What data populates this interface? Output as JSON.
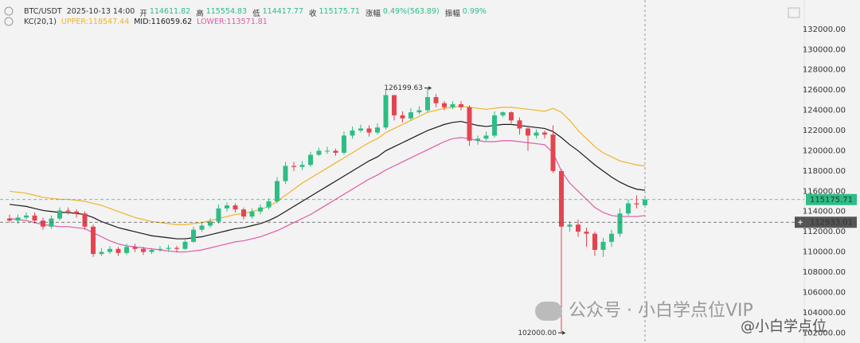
{
  "chart_data": {
    "type": "candlestick",
    "header": {
      "time": "2025-10-13 14:00",
      "fields": [
        {
          "label": "开",
          "value": "114611.82"
        },
        {
          "label": "高",
          "value": "115554.83"
        },
        {
          "label": "低",
          "value": "114417.77"
        },
        {
          "label": "收",
          "value": "115175.71"
        },
        {
          "label": "涨幅",
          "value": "0.49%(563.89)"
        },
        {
          "label": "振幅",
          "value": "0.99%"
        }
      ]
    },
    "indicator": {
      "name": "KC(20,1)",
      "values": [
        "118547.44",
        "116059.62",
        "113571.81"
      ]
    },
    "series": [
      {
        "name": "BTC/USDT",
        "up_color": "#2ebd85",
        "down_color": "#e4444f",
        "open": [
          113300,
          113100,
          113400,
          113600,
          113100,
          112500,
          113300,
          114100,
          114000,
          113800,
          112500,
          109800,
          110000,
          110300,
          109900,
          110500,
          110300,
          110000,
          110200,
          110300,
          110400,
          110300,
          111000,
          112200,
          112600,
          113000,
          114300,
          114600,
          114200,
          113500,
          114000,
          114400,
          115000,
          117000,
          118500,
          118400,
          118600,
          119600,
          120000,
          120000,
          119800,
          121500,
          122000,
          122200,
          121800,
          122300,
          125500,
          123500,
          123200,
          123800,
          124000,
          125300,
          124700,
          124300,
          124600,
          124300,
          121000,
          121200,
          121500,
          123500,
          123800,
          123000,
          122200,
          121500,
          121800,
          121600,
          118000,
          112500,
          112700,
          112000,
          111800,
          110200,
          111000,
          111800,
          113800,
          114800,
          114611.82
        ],
        "high": [
          113700,
          113700,
          113900,
          113900,
          113400,
          113600,
          114400,
          114400,
          114200,
          114000,
          112700,
          110400,
          110600,
          110500,
          110800,
          110800,
          110500,
          110400,
          110600,
          110700,
          110600,
          111200,
          112500,
          112900,
          113300,
          114700,
          114900,
          114800,
          114400,
          114300,
          114700,
          115300,
          117400,
          118900,
          118900,
          119000,
          119900,
          120300,
          120400,
          120200,
          121900,
          122400,
          122600,
          122500,
          122700,
          126000,
          125400,
          123900,
          124200,
          124400,
          126199.63,
          125600,
          124900,
          124900,
          124900,
          124500,
          121500,
          121900,
          123900,
          123900,
          123900,
          123300,
          122400,
          122100,
          122000,
          122500,
          118200,
          113000,
          113200,
          112400,
          112000,
          111400,
          112200,
          114300,
          115200,
          115600,
          115554.83
        ],
        "low": [
          112900,
          112800,
          113200,
          112800,
          112200,
          112300,
          113100,
          113700,
          113400,
          112200,
          109500,
          109600,
          109800,
          109600,
          109700,
          110000,
          109700,
          109800,
          110000,
          110000,
          110000,
          110200,
          110900,
          112000,
          112400,
          112800,
          114000,
          113900,
          113200,
          113300,
          113700,
          114200,
          114800,
          116700,
          118000,
          118100,
          118400,
          119500,
          119700,
          119500,
          119600,
          121200,
          121800,
          121400,
          121600,
          122100,
          123000,
          122800,
          123000,
          123600,
          123800,
          124300,
          124000,
          124100,
          124000,
          120500,
          120600,
          121000,
          121300,
          123300,
          122700,
          121600,
          120000,
          121200,
          121200,
          117800,
          102000,
          112000,
          111500,
          110500,
          109600,
          109500,
          110500,
          111500,
          113600,
          114300,
          114417.77
        ],
        "close": [
          113100,
          113400,
          113600,
          113100,
          112500,
          113300,
          114100,
          114000,
          113800,
          112500,
          109800,
          110000,
          110300,
          109900,
          110500,
          110300,
          110000,
          110200,
          110300,
          110400,
          110300,
          111000,
          112200,
          112600,
          113000,
          114300,
          114600,
          114200,
          113500,
          114000,
          114400,
          115000,
          117000,
          118500,
          118400,
          118600,
          119600,
          120000,
          120000,
          119800,
          121500,
          122000,
          122200,
          121800,
          122300,
          125500,
          123500,
          123200,
          123800,
          124000,
          125300,
          124700,
          124300,
          124600,
          124300,
          121000,
          121200,
          121500,
          123500,
          123800,
          123000,
          122200,
          121500,
          121800,
          121600,
          118000,
          112500,
          112700,
          112000,
          111800,
          110200,
          111000,
          111800,
          113800,
          114800,
          114700,
          115175.71
        ]
      },
      {
        "name": "UPPER:",
        "color": "#f0b429",
        "values": [
          116000,
          115900,
          115800,
          115600,
          115400,
          115300,
          115200,
          115200,
          115100,
          115000,
          114800,
          114600,
          114300,
          114000,
          113700,
          113400,
          113200,
          113000,
          112900,
          112800,
          112700,
          112700,
          112800,
          112900,
          113100,
          113300,
          113500,
          113700,
          113800,
          114000,
          114200,
          114500,
          115000,
          115600,
          116200,
          116800,
          117300,
          117800,
          118300,
          118800,
          119300,
          119800,
          120300,
          120800,
          121200,
          121800,
          122200,
          122600,
          123000,
          123400,
          123800,
          124000,
          124200,
          124300,
          124400,
          124300,
          124200,
          124100,
          124200,
          124300,
          124300,
          124200,
          124100,
          124000,
          123900,
          124200,
          123800,
          123000,
          122000,
          121200,
          120400,
          119800,
          119400,
          119000,
          118800,
          118600,
          118500
        ]
      },
      {
        "name": "MID:",
        "color": "#1a1a1a",
        "values": [
          114700,
          114600,
          114500,
          114300,
          114100,
          114000,
          113900,
          113900,
          113800,
          113700,
          113400,
          113000,
          112700,
          112400,
          112200,
          112000,
          111800,
          111600,
          111500,
          111400,
          111300,
          111300,
          111400,
          111500,
          111700,
          111900,
          112100,
          112300,
          112400,
          112600,
          112800,
          113100,
          113500,
          114000,
          114500,
          115000,
          115500,
          116000,
          116500,
          117000,
          117500,
          118000,
          118500,
          119000,
          119400,
          120000,
          120400,
          120800,
          121200,
          121600,
          122000,
          122300,
          122600,
          122800,
          122900,
          122700,
          122500,
          122400,
          122500,
          122600,
          122600,
          122500,
          122400,
          122300,
          122200,
          121900,
          121300,
          120600,
          120000,
          119300,
          118600,
          118000,
          117400,
          116900,
          116500,
          116200,
          116100
        ]
      },
      {
        "name": "LOWER:",
        "color": "#e05aa8",
        "values": [
          113300,
          113200,
          113100,
          112900,
          112700,
          112600,
          112500,
          112500,
          112400,
          112300,
          111900,
          111500,
          111100,
          110800,
          110600,
          110500,
          110400,
          110300,
          110200,
          110100,
          110000,
          110000,
          110100,
          110200,
          110400,
          110600,
          110800,
          111000,
          111100,
          111300,
          111500,
          111800,
          112100,
          112500,
          112900,
          113300,
          113700,
          114200,
          114700,
          115200,
          115700,
          116200,
          116700,
          117200,
          117600,
          118100,
          118500,
          118900,
          119300,
          119700,
          120100,
          120500,
          120900,
          121200,
          121300,
          121200,
          121000,
          120900,
          120900,
          121000,
          121000,
          120900,
          120800,
          120700,
          120600,
          119800,
          118000,
          116800,
          116000,
          115200,
          114400,
          113900,
          113600,
          113500,
          113500,
          113500,
          113600
        ]
      }
    ],
    "ylim": [
      101000,
      134900
    ],
    "yticks": [
      {
        "value": 102000,
        "label": "102000.00"
      },
      {
        "value": 104000,
        "label": "104000.00"
      },
      {
        "value": 106000,
        "label": "106000.00"
      },
      {
        "value": 108000,
        "label": "108000.00"
      },
      {
        "value": 110000,
        "label": "110000.00"
      },
      {
        "value": 112000,
        "label": "112000.00"
      },
      {
        "value": 114000,
        "label": "114000.00"
      },
      {
        "value": 116000,
        "label": "116000.00"
      },
      {
        "value": 118000,
        "label": "118000.00"
      },
      {
        "value": 120000,
        "label": "120000.00"
      },
      {
        "value": 122000,
        "label": "122000.00"
      },
      {
        "value": 124000,
        "label": "124000.00"
      },
      {
        "value": 126000,
        "label": "126000.00"
      },
      {
        "value": 128000,
        "label": "128000.00"
      },
      {
        "value": 130000,
        "label": "130000.00"
      },
      {
        "value": 132000,
        "label": "132000.00"
      }
    ],
    "grid": false,
    "last_price": {
      "value": 115175.71,
      "label": "115175.71",
      "color": "#2ebd85"
    },
    "crosshair_price": {
      "value": 112933.01,
      "label": "112933.01",
      "color": "#555555"
    },
    "annotations": [
      {
        "index": 50,
        "value": 126199.63,
        "label": "126199.63"
      },
      {
        "index": 66,
        "value": 102000,
        "label": "102000.00"
      }
    ],
    "watermark": {
      "text": "公众号 · 小白学点位VIP",
      "handle": "@小白学点位"
    }
  }
}
